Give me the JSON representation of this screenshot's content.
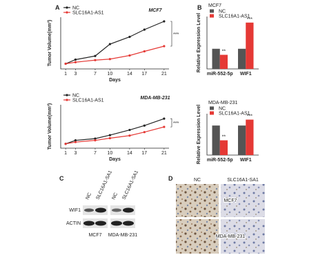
{
  "panel_labels": [
    "A",
    "B",
    "C",
    "D"
  ],
  "chart_data": [
    {
      "type": "line",
      "title": "MCF7",
      "x": [
        1,
        3,
        7,
        10,
        14,
        17,
        21
      ],
      "xlim": [
        0,
        22
      ],
      "xticks": [
        1,
        3,
        7,
        10,
        14,
        17,
        21
      ],
      "xlabel": "Days",
      "ylabel": "Tumor Volume(mm³)",
      "ylim": [
        0,
        1000
      ],
      "annotation": "***",
      "legend": "upper left",
      "series": [
        {
          "name": "NC",
          "color": "#222222",
          "values": [
            100,
            180,
            250,
            480,
            620,
            760,
            920
          ]
        },
        {
          "name": "SLC16A1-AS1",
          "color": "#e53935",
          "values": [
            100,
            130,
            170,
            190,
            260,
            340,
            440
          ]
        }
      ]
    },
    {
      "type": "line",
      "title": "MDA-MB-231",
      "x": [
        1,
        3,
        7,
        10,
        14,
        17,
        21
      ],
      "xlim": [
        0,
        22
      ],
      "xticks": [
        1,
        3,
        7,
        10,
        14,
        17,
        21
      ],
      "xlabel": "Days",
      "ylabel": "Tumor Volume(mm³)",
      "ylim": [
        0,
        1000
      ],
      "annotation": "***",
      "legend": "upper left",
      "series": [
        {
          "name": "NC",
          "color": "#222222",
          "values": [
            100,
            180,
            220,
            300,
            420,
            520,
            680
          ]
        },
        {
          "name": "SLC16A1-AS1",
          "color": "#e53935",
          "values": [
            100,
            140,
            180,
            230,
            290,
            370,
            490
          ]
        }
      ]
    },
    {
      "type": "bar",
      "title": "MCF7",
      "categories": [
        "miR-552-5p",
        "WIF1"
      ],
      "ylabel": "Relative Expression Level",
      "ylim": [
        0,
        2.6
      ],
      "legend": "upper left",
      "series": [
        {
          "name": "NC",
          "color": "#555555",
          "values": [
            1.0,
            1.0
          ]
        },
        {
          "name": "SLC16A1-AS1",
          "color": "#e53935",
          "values": [
            0.7,
            2.3
          ],
          "annotations": [
            "**",
            "***"
          ]
        }
      ]
    },
    {
      "type": "bar",
      "title": "MDA-MB-231",
      "categories": [
        "miR-552-5p",
        "WIF1"
      ],
      "ylabel": "Relative Expression Level",
      "ylim": [
        0,
        1.4
      ],
      "legend": "upper left",
      "series": [
        {
          "name": "NC",
          "color": "#555555",
          "values": [
            1.0,
            1.0
          ]
        },
        {
          "name": "SLC16A1-AS1",
          "color": "#e53935",
          "values": [
            0.5,
            1.2
          ],
          "annotations": [
            "**",
            "***"
          ]
        }
      ]
    }
  ],
  "blot": {
    "columns": [
      "NC",
      "SLC16A1-SA1",
      "NC",
      "SLC16A1-SA1"
    ],
    "rows": [
      "WIF1",
      "ACTIN"
    ],
    "groups": [
      "MCF7",
      "MDA-MB-231"
    ]
  },
  "ihc": {
    "columns": [
      "NC",
      "SLC16A1-SA1"
    ],
    "rows": [
      "MCF7",
      "MDA-MB-231"
    ]
  }
}
